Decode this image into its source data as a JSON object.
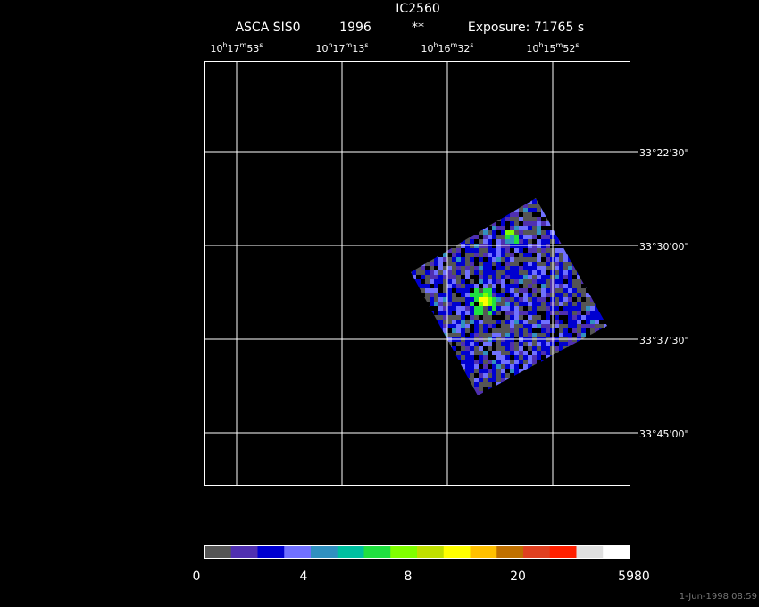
{
  "header": {
    "title": "IC2560",
    "subtitle": [
      "ASCA SIS0",
      "1996",
      "**",
      "Exposure: 71765 s"
    ]
  },
  "ra_labels": [
    [
      "10",
      "h",
      "17",
      "m",
      "53",
      "s"
    ],
    [
      "10",
      "h",
      "17",
      "m",
      "13",
      "s"
    ],
    [
      "10",
      "h",
      "16",
      "m",
      "32",
      "s"
    ],
    [
      "10",
      "h",
      "15",
      "m",
      "52",
      "s"
    ]
  ],
  "dec_labels": [
    "33°22'30\"",
    "33°30'00\"",
    "33°37'30\"",
    "33°45'00\""
  ],
  "colorbar": {
    "colors": [
      "#555555",
      "#5030b0",
      "#0000d0",
      "#7070ff",
      "#3090c0",
      "#00c0a0",
      "#20e040",
      "#80ff00",
      "#c0e000",
      "#ffff00",
      "#ffc000",
      "#c07000",
      "#e04020",
      "#ff2000",
      "#e0e0e0",
      "#ffffff"
    ],
    "labels": [
      "0",
      "4",
      "8",
      "20",
      "5980"
    ]
  },
  "timestamp": "1-Jun-1998 08:59"
}
